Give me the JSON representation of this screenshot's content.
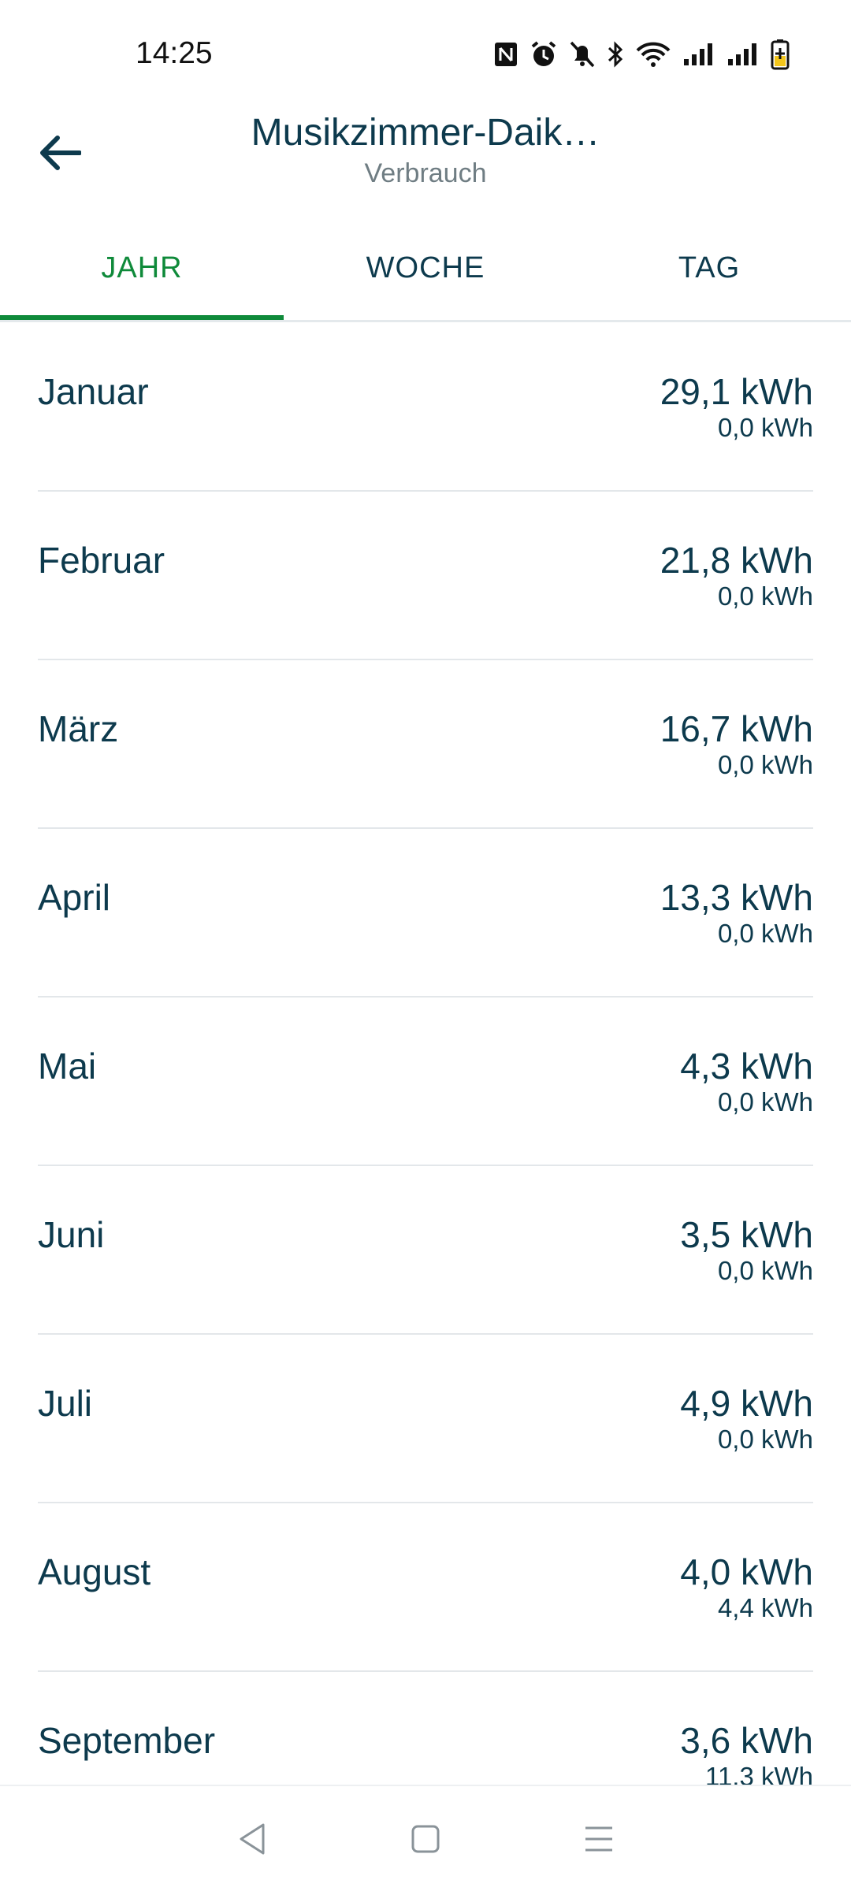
{
  "status_bar": {
    "time": "14:25",
    "icons": [
      "nfc-icon",
      "alarm-icon",
      "mute-icon",
      "bluetooth-icon",
      "wifi-icon",
      "signal-icon",
      "signal-icon",
      "battery-charging-icon"
    ]
  },
  "app_bar": {
    "back_icon": "arrow-left-icon",
    "title": "Musikzimmer-Daik…",
    "subtitle": "Verbrauch"
  },
  "tabs": [
    {
      "label": "JAHR",
      "active": true
    },
    {
      "label": "WOCHE",
      "active": false
    },
    {
      "label": "TAG",
      "active": false
    }
  ],
  "colors": {
    "accent": "#0f8a3a",
    "text": "#0d3a4d",
    "subtitle": "#6f7d83"
  },
  "months": [
    {
      "label": "Januar",
      "value": "29,1 kWh",
      "sub": "0,0 kWh"
    },
    {
      "label": "Februar",
      "value": "21,8 kWh",
      "sub": "0,0 kWh"
    },
    {
      "label": "März",
      "value": "16,7 kWh",
      "sub": "0,0 kWh"
    },
    {
      "label": "April",
      "value": "13,3 kWh",
      "sub": "0,0 kWh"
    },
    {
      "label": "Mai",
      "value": "4,3 kWh",
      "sub": "0,0 kWh"
    },
    {
      "label": "Juni",
      "value": "3,5 kWh",
      "sub": "0,0 kWh"
    },
    {
      "label": "Juli",
      "value": "4,9 kWh",
      "sub": "0,0 kWh"
    },
    {
      "label": "August",
      "value": "4,0 kWh",
      "sub": "4,4 kWh"
    },
    {
      "label": "September",
      "value": "3,6 kWh",
      "sub": "11,3 kWh"
    }
  ],
  "nav_bar": {
    "icons": [
      "back-triangle-icon",
      "home-square-icon",
      "menu-lines-icon"
    ]
  }
}
